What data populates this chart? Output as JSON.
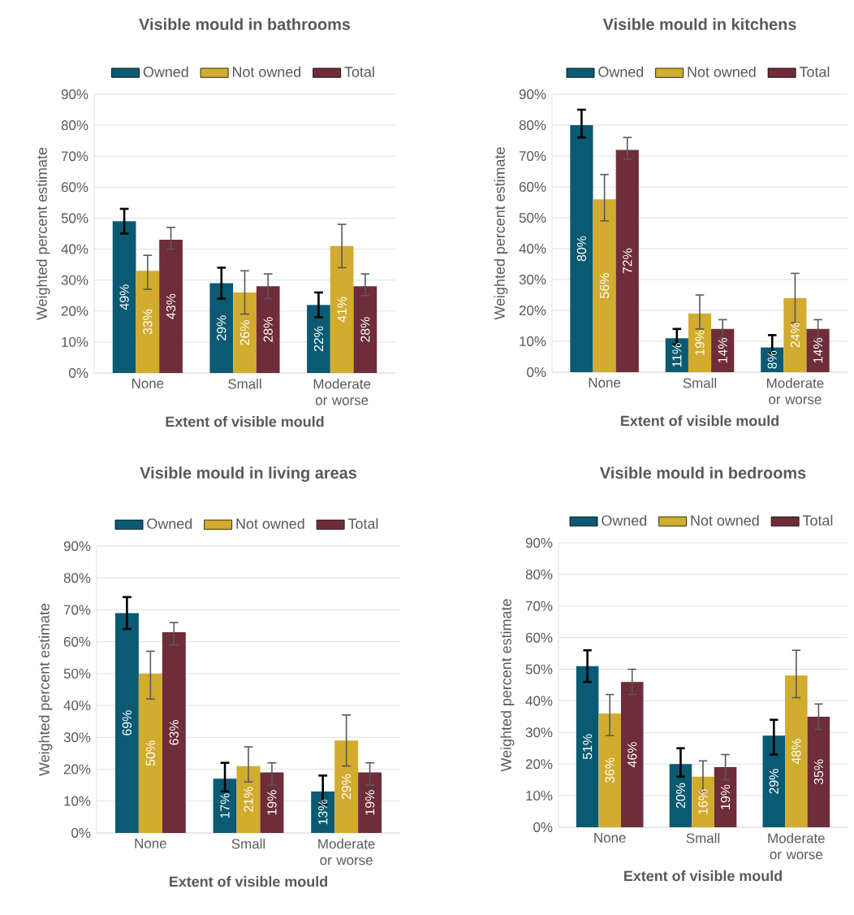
{
  "chart_data": [
    {
      "type": "bar",
      "title": "Visible mould in bathrooms",
      "xlabel": "Extent of visible mould",
      "ylabel": "Weighted percent estimate",
      "categories": [
        "None",
        "Small",
        "Moderate or worse"
      ],
      "ylim": [
        0,
        90
      ],
      "yticks": [
        {
          "value": 0,
          "label": "0%"
        },
        {
          "value": 10,
          "label": "10%"
        },
        {
          "value": 20,
          "label": "20%"
        },
        {
          "value": 30,
          "label": "30%"
        },
        {
          "value": 40,
          "label": "40%"
        },
        {
          "value": 50,
          "label": "50%"
        },
        {
          "value": 60,
          "label": "60%"
        },
        {
          "value": 70,
          "label": "70%"
        },
        {
          "value": 80,
          "label": "80%"
        },
        {
          "value": 90,
          "label": "90%"
        }
      ],
      "grid": "y",
      "legend": "top",
      "series": [
        {
          "name": "Owned",
          "color": "#0b5a73",
          "values": [
            49,
            29,
            22
          ],
          "value_labels": [
            "49%",
            "29%",
            "22%"
          ],
          "errors": [
            [
              45,
              53
            ],
            [
              24,
              34
            ],
            [
              18,
              26
            ]
          ]
        },
        {
          "name": "Not owned",
          "color": "#d2ac2f",
          "values": [
            33,
            26,
            41
          ],
          "value_labels": [
            "33%",
            "26%",
            "41%"
          ],
          "errors": [
            [
              27,
              38
            ],
            [
              19,
              33
            ],
            [
              34,
              48
            ]
          ]
        },
        {
          "name": "Total",
          "color": "#6e2d38",
          "values": [
            43,
            28,
            28
          ],
          "value_labels": [
            "43%",
            "28%",
            "28%"
          ],
          "errors": [
            [
              40,
              47
            ],
            [
              24,
              32
            ],
            [
              25,
              32
            ]
          ]
        }
      ]
    },
    {
      "type": "bar",
      "title": "Visible mould in kitchens",
      "xlabel": "Extent of visible mould",
      "ylabel": "Weighted percent estimate",
      "categories": [
        "None",
        "Small",
        "Moderate or worse"
      ],
      "ylim": [
        0,
        90
      ],
      "yticks": [
        {
          "value": 0,
          "label": "0%"
        },
        {
          "value": 10,
          "label": "10%"
        },
        {
          "value": 20,
          "label": "20%"
        },
        {
          "value": 30,
          "label": "30%"
        },
        {
          "value": 40,
          "label": "40%"
        },
        {
          "value": 50,
          "label": "50%"
        },
        {
          "value": 60,
          "label": "60%"
        },
        {
          "value": 70,
          "label": "70%"
        },
        {
          "value": 80,
          "label": "80%"
        },
        {
          "value": 90,
          "label": "90%"
        }
      ],
      "grid": "y",
      "legend": "top",
      "series": [
        {
          "name": "Owned",
          "color": "#0b5a73",
          "values": [
            80,
            11,
            8
          ],
          "value_labels": [
            "80%",
            "11%",
            "8%"
          ],
          "errors": [
            [
              76,
              85
            ],
            [
              9,
              14
            ],
            [
              6,
              12
            ]
          ]
        },
        {
          "name": "Not owned",
          "color": "#d2ac2f",
          "values": [
            56,
            19,
            24
          ],
          "value_labels": [
            "56%",
            "19%",
            "24%"
          ],
          "errors": [
            [
              49,
              64
            ],
            [
              14,
              25
            ],
            [
              16,
              32
            ]
          ]
        },
        {
          "name": "Total",
          "color": "#6e2d38",
          "values": [
            72,
            14,
            14
          ],
          "value_labels": [
            "72%",
            "14%",
            "14%"
          ],
          "errors": [
            [
              69,
              76
            ],
            [
              11,
              17
            ],
            [
              11,
              17
            ]
          ]
        }
      ]
    },
    {
      "type": "bar",
      "title": "Visible mould in living areas",
      "xlabel": "Extent of visible mould",
      "ylabel": "Weighted percent estimate",
      "categories": [
        "None",
        "Small",
        "Moderate or worse"
      ],
      "ylim": [
        0,
        90
      ],
      "yticks": [
        {
          "value": 0,
          "label": "0%"
        },
        {
          "value": 10,
          "label": "10%"
        },
        {
          "value": 20,
          "label": "20%"
        },
        {
          "value": 30,
          "label": "30%"
        },
        {
          "value": 40,
          "label": "40%"
        },
        {
          "value": 50,
          "label": "50%"
        },
        {
          "value": 60,
          "label": "60%"
        },
        {
          "value": 70,
          "label": "70%"
        },
        {
          "value": 80,
          "label": "80%"
        },
        {
          "value": 90,
          "label": "90%"
        }
      ],
      "grid": "y",
      "legend": "top",
      "series": [
        {
          "name": "Owned",
          "color": "#0b5a73",
          "values": [
            69,
            17,
            13
          ],
          "value_labels": [
            "69%",
            "17%",
            "13%"
          ],
          "errors": [
            [
              64,
              74
            ],
            [
              13,
              22
            ],
            [
              9,
              18
            ]
          ]
        },
        {
          "name": "Not owned",
          "color": "#d2ac2f",
          "values": [
            50,
            21,
            29
          ],
          "value_labels": [
            "50%",
            "21%",
            "29%"
          ],
          "errors": [
            [
              42,
              57
            ],
            [
              16,
              27
            ],
            [
              21,
              37
            ]
          ]
        },
        {
          "name": "Total",
          "color": "#6e2d38",
          "values": [
            63,
            19,
            19
          ],
          "value_labels": [
            "63%",
            "19%",
            "19%"
          ],
          "errors": [
            [
              59,
              66
            ],
            [
              15,
              22
            ],
            [
              15,
              22
            ]
          ]
        }
      ]
    },
    {
      "type": "bar",
      "title": "Visible mould in bedrooms",
      "xlabel": "Extent of visible mould",
      "ylabel": "Weighted percent estimate",
      "categories": [
        "None",
        "Small",
        "Moderate or worse"
      ],
      "ylim": [
        0,
        90
      ],
      "yticks": [
        {
          "value": 0,
          "label": "0%"
        },
        {
          "value": 10,
          "label": "10%"
        },
        {
          "value": 20,
          "label": "20%"
        },
        {
          "value": 30,
          "label": "30%"
        },
        {
          "value": 40,
          "label": "40%"
        },
        {
          "value": 50,
          "label": "50%"
        },
        {
          "value": 60,
          "label": "60%"
        },
        {
          "value": 70,
          "label": "70%"
        },
        {
          "value": 80,
          "label": "80%"
        },
        {
          "value": 90,
          "label": "90%"
        }
      ],
      "grid": "y",
      "legend": "top",
      "series": [
        {
          "name": "Owned",
          "color": "#0b5a73",
          "values": [
            51,
            20,
            29
          ],
          "value_labels": [
            "51%",
            "20%",
            "29%"
          ],
          "errors": [
            [
              46,
              56
            ],
            [
              16,
              25
            ],
            [
              23,
              34
            ]
          ]
        },
        {
          "name": "Not owned",
          "color": "#d2ac2f",
          "values": [
            36,
            16,
            48
          ],
          "value_labels": [
            "36%",
            "16%",
            "48%"
          ],
          "errors": [
            [
              29,
              42
            ],
            [
              11,
              21
            ],
            [
              41,
              56
            ]
          ]
        },
        {
          "name": "Total",
          "color": "#6e2d38",
          "values": [
            46,
            19,
            35
          ],
          "value_labels": [
            "46%",
            "19%",
            "35%"
          ],
          "errors": [
            [
              42,
              50
            ],
            [
              15,
              23
            ],
            [
              31,
              39
            ]
          ]
        }
      ]
    }
  ]
}
